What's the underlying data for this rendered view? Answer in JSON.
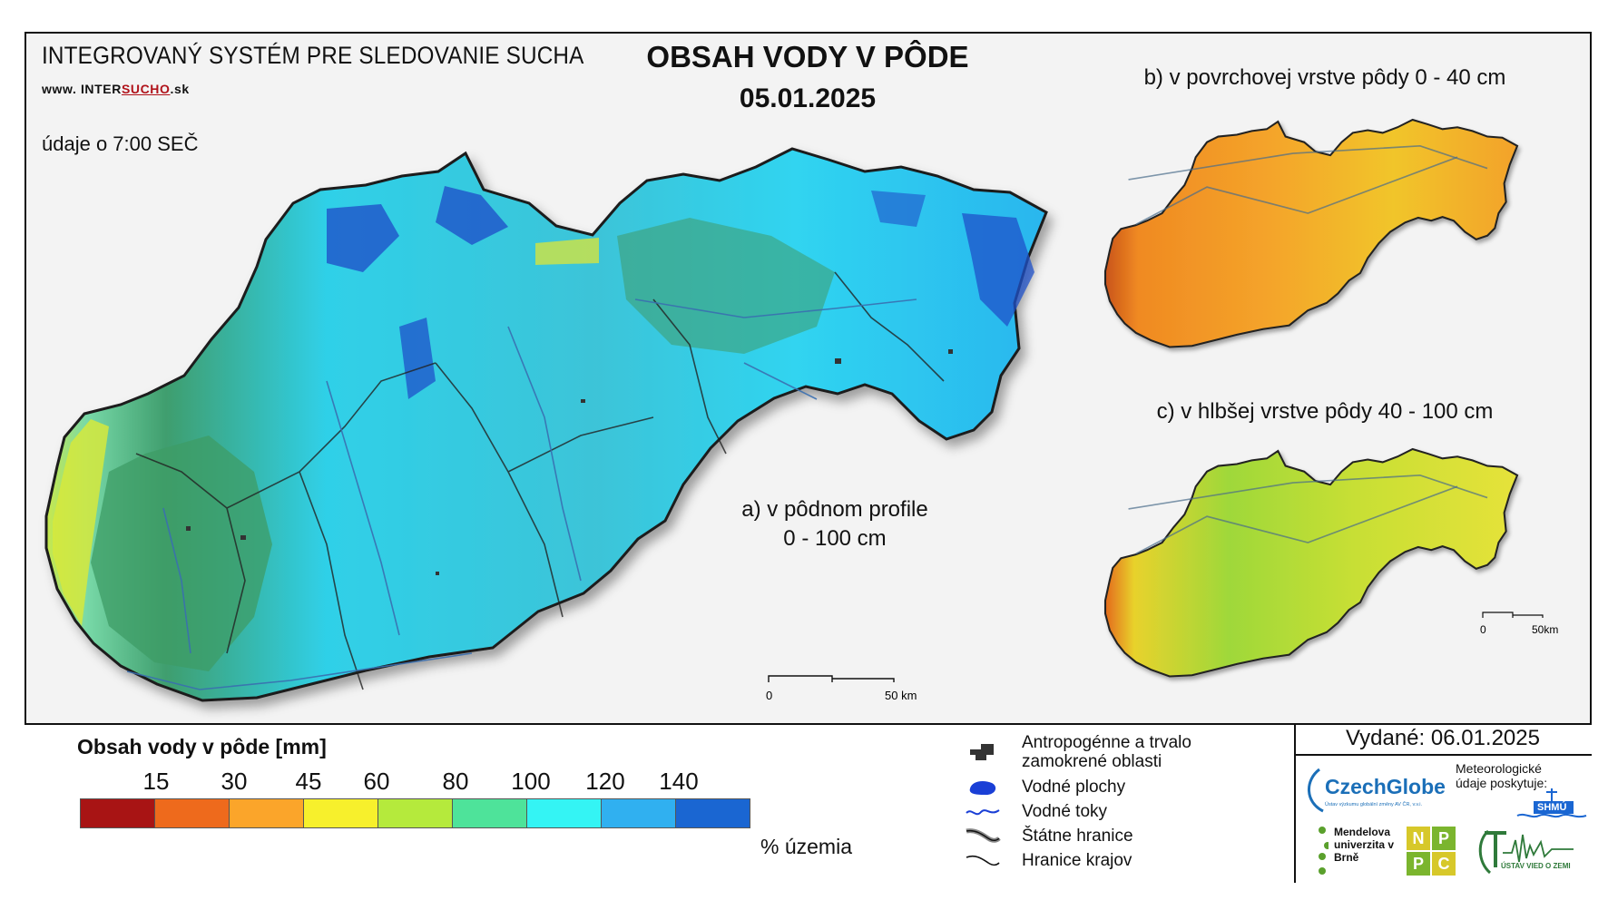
{
  "header": {
    "system_title": "INTEGROVANÝ SYSTÉM PRE SLEDOVANIE SUCHA",
    "url_prefix": "www. ",
    "url_part1": "INTER",
    "url_part2": "SUCHO",
    "url_suffix": ".sk",
    "observation_time": "údaje o 7:00 SEČ",
    "main_title": "OBSAH VODY V PÔDE",
    "date": "05.01.2025"
  },
  "maps": {
    "a_label_line1": "a) v pôdnom profile",
    "a_label_line2": "0 - 100 cm",
    "b_label": "b) v povrchovej vrstve pôdy 0 - 40 cm",
    "c_label": "c) v hlbšej vrstve pôdy 40 - 100 cm",
    "scale_main_start": "0",
    "scale_main_end": "50 km",
    "scale_small_start": "0",
    "scale_small_end": "50km"
  },
  "legend": {
    "title": "Obsah vody v pôde  [mm]",
    "ticks": [
      "15",
      "30",
      "45",
      "60",
      "80",
      "100",
      "120",
      "140"
    ],
    "colors": [
      "#a81414",
      "#ee6a1c",
      "#fba52a",
      "#f7f02c",
      "#b5ea3c",
      "#4ee39a",
      "#34f4f4",
      "#30b0f0",
      "#1a66d2"
    ],
    "unit_label": "% územia",
    "symbols": [
      {
        "icon": "anthropogenic-area-icon",
        "text": "Antropogénne a trvalo zamokrené oblasti"
      },
      {
        "icon": "water-body-icon",
        "text": "Vodné plochy"
      },
      {
        "icon": "water-stream-icon",
        "text": "Vodné toky"
      },
      {
        "icon": "state-border-icon",
        "text": "Štátne hranice"
      },
      {
        "icon": "region-border-icon",
        "text": "Hranice krajov"
      }
    ]
  },
  "footer": {
    "issued": "Vydané: 06.01.2025",
    "czechglobe": "CzechGlobe",
    "czechglobe_sub": "Ústav výzkumu globální změny AV ČR, v.v.i.",
    "meteo_note": "Meteorologické údaje poskytuje:",
    "shmu": "SHMÚ",
    "mendel": "Mendelova univerzita v Brně",
    "nppc": [
      "N",
      "P",
      "P",
      "C"
    ],
    "uvz": "ÚSTAV VIED O ZEMI"
  },
  "colors": {
    "border": "#111111",
    "background": "#f3f3f3",
    "czechglobe_blue": "#1b6fb8",
    "mendel_green": "#5aa02c",
    "nppc_yellow": "#d7c82a",
    "nppc_green": "#7bb52e",
    "uvz_green": "#2f7a3a"
  }
}
